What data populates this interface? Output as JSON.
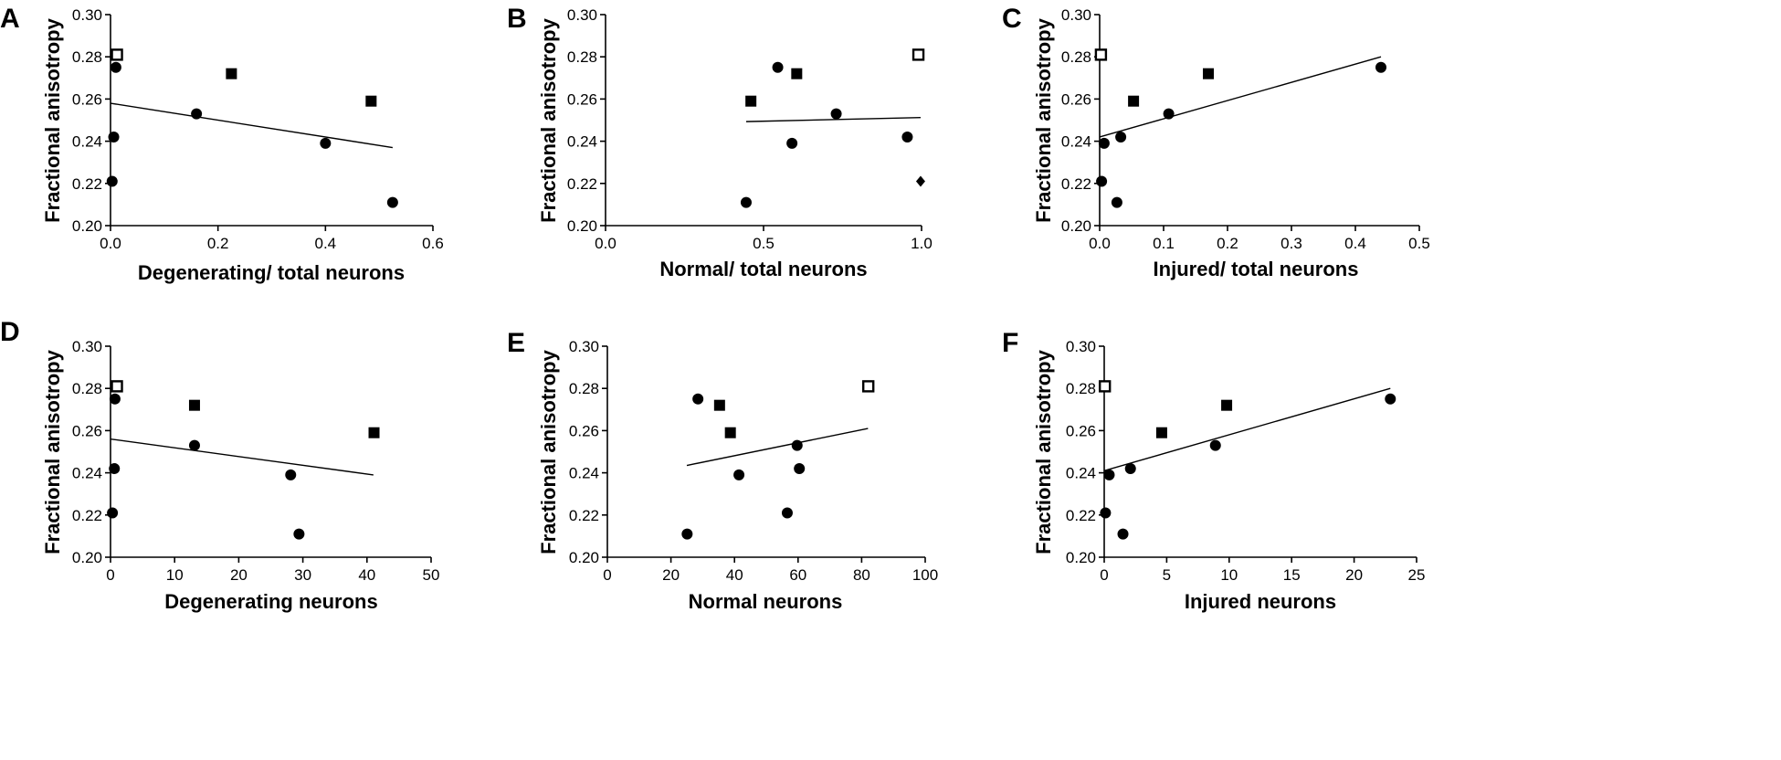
{
  "colors": {
    "ink": "#000000",
    "background": "#ffffff"
  },
  "chart_data": [
    {
      "panel": "A",
      "type": "scatter",
      "xlabel": "Degenerating/ total neurons",
      "ylabel": "Fractional anisotropy",
      "xlim": [
        0,
        0.6
      ],
      "ylim": [
        0.2,
        0.3
      ],
      "xticks": [
        0,
        0.2,
        0.4,
        0.6
      ],
      "xtick_labels": [
        "0.0",
        "0.2",
        "0.4",
        "0.6"
      ],
      "yticks": [
        0.2,
        0.22,
        0.24,
        0.26,
        0.28,
        0.3
      ],
      "ytick_labels": [
        "0.20",
        "0.22",
        "0.24",
        "0.26",
        "0.28",
        "0.30"
      ],
      "series": [
        {
          "name": "circles",
          "marker": "circle",
          "points": [
            [
              0.01,
              0.275
            ],
            [
              0.006,
              0.242
            ],
            [
              0.003,
              0.221
            ],
            [
              0.16,
              0.253
            ],
            [
              0.4,
              0.239
            ],
            [
              0.525,
              0.211
            ]
          ]
        },
        {
          "name": "filled squares",
          "marker": "square",
          "points": [
            [
              0.225,
              0.272
            ],
            [
              0.485,
              0.259
            ]
          ]
        },
        {
          "name": "open squares",
          "marker": "open-square",
          "points": [
            [
              0.012,
              0.281
            ]
          ]
        }
      ],
      "fit_line": [
        [
          0,
          0.258
        ],
        [
          0.525,
          0.237
        ]
      ]
    },
    {
      "panel": "B",
      "type": "scatter",
      "xlabel": "Normal/ total neurons",
      "ylabel": "Fractional anisotropy",
      "xlim": [
        0,
        1.0
      ],
      "ylim": [
        0.2,
        0.3
      ],
      "xticks": [
        0,
        0.5,
        1.0
      ],
      "xtick_labels": [
        "0.0",
        "0.5",
        "1.0"
      ],
      "yticks": [
        0.2,
        0.22,
        0.24,
        0.26,
        0.28,
        0.3
      ],
      "ytick_labels": [
        "0.20",
        "0.22",
        "0.24",
        "0.26",
        "0.28",
        "0.30"
      ],
      "series": [
        {
          "name": "circles",
          "marker": "circle",
          "points": [
            [
              0.545,
              0.275
            ],
            [
              0.59,
              0.239
            ],
            [
              0.73,
              0.253
            ],
            [
              0.445,
              0.211
            ],
            [
              0.955,
              0.242
            ]
          ]
        },
        {
          "name": "filled squares",
          "marker": "square",
          "points": [
            [
              0.46,
              0.259
            ],
            [
              0.605,
              0.272
            ]
          ]
        },
        {
          "name": "open squares",
          "marker": "open-square",
          "points": [
            [
              0.99,
              0.281
            ]
          ]
        },
        {
          "name": "diamonds",
          "marker": "diamond",
          "points": [
            [
              0.997,
              0.221
            ]
          ]
        }
      ],
      "fit_line": [
        [
          0.445,
          0.2493
        ],
        [
          0.997,
          0.2512
        ]
      ]
    },
    {
      "panel": "C",
      "type": "scatter",
      "xlabel": "Injured/ total neurons",
      "ylabel": "Fractional anisotropy",
      "xlim": [
        0,
        0.5
      ],
      "ylim": [
        0.2,
        0.3
      ],
      "xticks": [
        0,
        0.1,
        0.2,
        0.3,
        0.4,
        0.5
      ],
      "xtick_labels": [
        "0.0",
        "0.1",
        "0.2",
        "0.3",
        "0.4",
        "0.5"
      ],
      "yticks": [
        0.2,
        0.22,
        0.24,
        0.26,
        0.28,
        0.3
      ],
      "ytick_labels": [
        "0.20",
        "0.22",
        "0.24",
        "0.26",
        "0.28",
        "0.30"
      ],
      "series": [
        {
          "name": "circles",
          "marker": "circle",
          "points": [
            [
              0.003,
              0.221
            ],
            [
              0.007,
              0.239
            ],
            [
              0.027,
              0.211
            ],
            [
              0.033,
              0.242
            ],
            [
              0.108,
              0.253
            ],
            [
              0.44,
              0.275
            ]
          ]
        },
        {
          "name": "filled squares",
          "marker": "square",
          "points": [
            [
              0.053,
              0.259
            ],
            [
              0.17,
              0.272
            ]
          ]
        },
        {
          "name": "open squares",
          "marker": "open-square",
          "points": [
            [
              0.002,
              0.281
            ]
          ]
        }
      ],
      "fit_line": [
        [
          0,
          0.242
        ],
        [
          0.44,
          0.28
        ]
      ]
    },
    {
      "panel": "D",
      "type": "scatter",
      "xlabel": "Degenerating neurons",
      "ylabel": "Fractional anisotropy",
      "xlim": [
        0,
        50
      ],
      "ylim": [
        0.2,
        0.3
      ],
      "xticks": [
        0,
        10,
        20,
        30,
        40,
        50
      ],
      "xtick_labels": [
        "0",
        "10",
        "20",
        "30",
        "40",
        "50"
      ],
      "yticks": [
        0.2,
        0.22,
        0.24,
        0.26,
        0.28,
        0.3
      ],
      "ytick_labels": [
        "0.20",
        "0.22",
        "0.24",
        "0.26",
        "0.28",
        "0.30"
      ],
      "series": [
        {
          "name": "circles",
          "marker": "circle",
          "points": [
            [
              0.7,
              0.275
            ],
            [
              0.6,
              0.242
            ],
            [
              0.3,
              0.221
            ],
            [
              13.1,
              0.253
            ],
            [
              28.1,
              0.239
            ],
            [
              29.4,
              0.211
            ]
          ]
        },
        {
          "name": "filled squares",
          "marker": "square",
          "points": [
            [
              13.1,
              0.272
            ],
            [
              41.1,
              0.259
            ]
          ]
        },
        {
          "name": "open squares",
          "marker": "open-square",
          "points": [
            [
              1.0,
              0.281
            ]
          ]
        }
      ],
      "fit_line": [
        [
          0,
          0.256
        ],
        [
          41,
          0.239
        ]
      ]
    },
    {
      "panel": "E",
      "type": "scatter",
      "xlabel": "Normal neurons",
      "ylabel": "Fractional anisotropy",
      "xlim": [
        0,
        100
      ],
      "ylim": [
        0.2,
        0.3
      ],
      "xticks": [
        0,
        20,
        40,
        60,
        80,
        100
      ],
      "xtick_labels": [
        "0",
        "20",
        "40",
        "60",
        "80",
        "100"
      ],
      "yticks": [
        0.2,
        0.22,
        0.24,
        0.26,
        0.28,
        0.3
      ],
      "ytick_labels": [
        "0.20",
        "0.22",
        "0.24",
        "0.26",
        "0.28",
        "0.30"
      ],
      "series": [
        {
          "name": "circles",
          "marker": "circle",
          "points": [
            [
              28.5,
              0.275
            ],
            [
              41.4,
              0.239
            ],
            [
              59.7,
              0.253
            ],
            [
              60.4,
              0.242
            ],
            [
              56.6,
              0.221
            ],
            [
              25.1,
              0.211
            ]
          ]
        },
        {
          "name": "filled squares",
          "marker": "square",
          "points": [
            [
              35.3,
              0.272
            ],
            [
              38.7,
              0.259
            ]
          ]
        },
        {
          "name": "open squares",
          "marker": "open-square",
          "points": [
            [
              82.1,
              0.281
            ]
          ]
        }
      ],
      "fit_line": [
        [
          25,
          0.2435
        ],
        [
          82,
          0.261
        ]
      ]
    },
    {
      "panel": "F",
      "type": "scatter",
      "xlabel": "Injured neurons",
      "ylabel": "Fractional anisotropy",
      "xlim": [
        0,
        25
      ],
      "ylim": [
        0.2,
        0.3
      ],
      "xticks": [
        0,
        5,
        10,
        15,
        20,
        25
      ],
      "xtick_labels": [
        "0",
        "5",
        "10",
        "15",
        "20",
        "25"
      ],
      "yticks": [
        0.2,
        0.22,
        0.24,
        0.26,
        0.28,
        0.3
      ],
      "ytick_labels": [
        "0.20",
        "0.22",
        "0.24",
        "0.26",
        "0.28",
        "0.30"
      ],
      "series": [
        {
          "name": "circles",
          "marker": "circle",
          "points": [
            [
              0.1,
              0.221
            ],
            [
              0.4,
              0.239
            ],
            [
              1.5,
              0.211
            ],
            [
              2.1,
              0.242
            ],
            [
              8.9,
              0.253
            ],
            [
              22.9,
              0.275
            ]
          ]
        },
        {
          "name": "filled squares",
          "marker": "square",
          "points": [
            [
              4.6,
              0.259
            ],
            [
              9.8,
              0.272
            ]
          ]
        },
        {
          "name": "open squares",
          "marker": "open-square",
          "points": [
            [
              0.05,
              0.281
            ]
          ]
        }
      ],
      "fit_line": [
        [
          0,
          0.241
        ],
        [
          22.9,
          0.28
        ]
      ]
    }
  ]
}
